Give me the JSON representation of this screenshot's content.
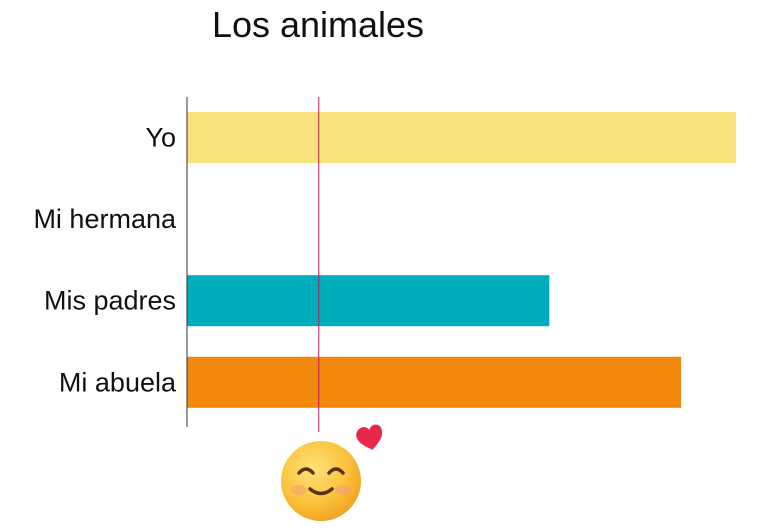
{
  "chart_data": {
    "type": "bar",
    "orientation": "horizontal",
    "title": "Los animales",
    "categories": [
      "Yo",
      "Mi hermana",
      "Mis padres",
      "Mi abuela"
    ],
    "values": [
      10,
      0,
      6.6,
      9
    ],
    "xlim": [
      0,
      10
    ],
    "reference_line": 2.4,
    "grid": false,
    "legend": "none",
    "colors": {
      "Yo": "#f9e37c",
      "Mi hermana": "#f9e37c",
      "Mis padres": "#00adbd",
      "Mi abuela": "#f2880c",
      "axis": "#333333",
      "reference_line": "#c2185b"
    },
    "marker": {
      "icon": "smiling-face-with-heart-icon",
      "heart_color": "#e8274b",
      "face_color": "#fbc33d"
    }
  }
}
